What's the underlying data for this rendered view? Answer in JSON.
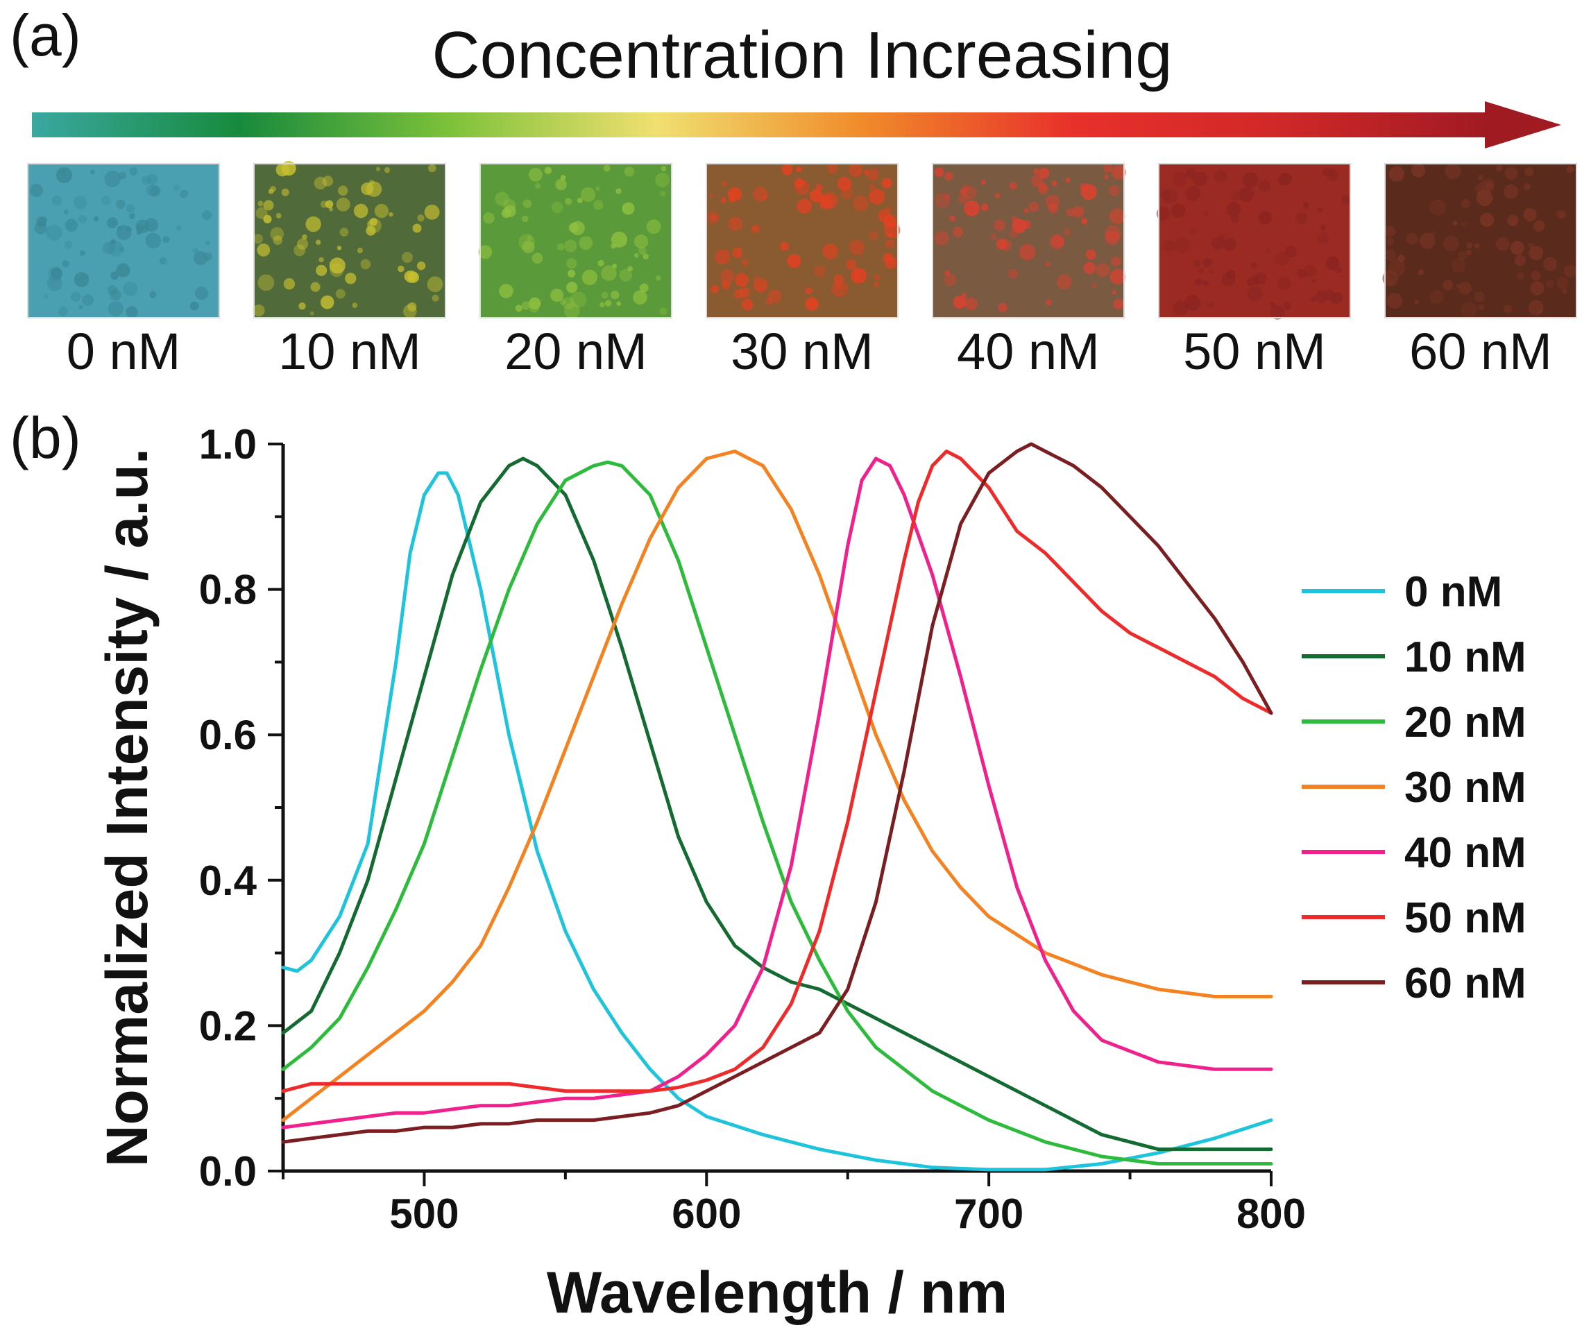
{
  "panel_a": {
    "label": "(a)",
    "banner": "Concentration Increasing",
    "gradient_colors": [
      "#3aa8a0",
      "#178a3c",
      "#7cc13a",
      "#f0e070",
      "#f08a2a",
      "#e8302a",
      "#d02828",
      "#a01a22"
    ],
    "samples": [
      {
        "label": "0 nM",
        "color_base": "#4aa0b0",
        "color_speckle": "#3a8898"
      },
      {
        "label": "10 nM",
        "color_base": "#506a3a",
        "color_speckle": "#c8c030"
      },
      {
        "label": "20 nM",
        "color_base": "#5a9a3a",
        "color_speckle": "#90c040"
      },
      {
        "label": "30 nM",
        "color_base": "#8a5a30",
        "color_speckle": "#e84020"
      },
      {
        "label": "40 nM",
        "color_base": "#7a5a40",
        "color_speckle": "#e04030"
      },
      {
        "label": "50 nM",
        "color_base": "#9a2a22",
        "color_speckle": "#8a2420"
      },
      {
        "label": "60 nM",
        "color_base": "#5a2a1c",
        "color_speckle": "#7a3424"
      }
    ]
  },
  "panel_b": {
    "label": "(b)"
  },
  "chart_data": {
    "type": "line",
    "title": "",
    "xlabel": "Wavelength / nm",
    "ylabel": "Normalized Intensity / a.u.",
    "xlim": [
      450,
      800
    ],
    "ylim": [
      0.0,
      1.0
    ],
    "xticks": [
      500,
      600,
      700,
      800
    ],
    "xtick_labels": [
      "500",
      "600",
      "700",
      "800"
    ],
    "yticks": [
      0.0,
      0.2,
      0.4,
      0.6,
      0.8,
      1.0
    ],
    "ytick_labels": [
      "0.0",
      "0.2",
      "0.4",
      "0.6",
      "0.8",
      "1.0"
    ],
    "legend_position": "right",
    "series": [
      {
        "name": "0 nM",
        "color": "#1ec3dc",
        "x": [
          450,
          455,
          460,
          465,
          470,
          480,
          490,
          495,
          500,
          505,
          508,
          512,
          520,
          530,
          540,
          550,
          560,
          570,
          580,
          590,
          600,
          620,
          640,
          660,
          680,
          700,
          720,
          740,
          760,
          780,
          800
        ],
        "y": [
          0.28,
          0.275,
          0.29,
          0.32,
          0.35,
          0.45,
          0.7,
          0.85,
          0.93,
          0.96,
          0.96,
          0.93,
          0.8,
          0.6,
          0.44,
          0.33,
          0.25,
          0.19,
          0.14,
          0.1,
          0.075,
          0.05,
          0.03,
          0.015,
          0.005,
          0.002,
          0.002,
          0.01,
          0.025,
          0.045,
          0.07
        ]
      },
      {
        "name": "10 nM",
        "color": "#136b32",
        "x": [
          450,
          460,
          470,
          480,
          490,
          500,
          510,
          520,
          530,
          535,
          540,
          550,
          560,
          570,
          580,
          590,
          600,
          610,
          620,
          630,
          640,
          650,
          660,
          670,
          680,
          700,
          720,
          740,
          760,
          780,
          800
        ],
        "y": [
          0.19,
          0.22,
          0.3,
          0.4,
          0.54,
          0.68,
          0.82,
          0.92,
          0.97,
          0.98,
          0.97,
          0.93,
          0.84,
          0.72,
          0.59,
          0.46,
          0.37,
          0.31,
          0.28,
          0.26,
          0.25,
          0.23,
          0.21,
          0.19,
          0.17,
          0.13,
          0.09,
          0.05,
          0.03,
          0.03,
          0.03
        ]
      },
      {
        "name": "20 nM",
        "color": "#2dbb3b",
        "x": [
          450,
          460,
          470,
          480,
          490,
          500,
          510,
          520,
          530,
          540,
          550,
          560,
          565,
          570,
          580,
          590,
          600,
          610,
          620,
          630,
          640,
          650,
          660,
          680,
          700,
          720,
          740,
          760,
          780,
          800
        ],
        "y": [
          0.14,
          0.17,
          0.21,
          0.28,
          0.36,
          0.45,
          0.57,
          0.69,
          0.8,
          0.89,
          0.95,
          0.97,
          0.975,
          0.97,
          0.93,
          0.84,
          0.72,
          0.6,
          0.48,
          0.37,
          0.29,
          0.22,
          0.17,
          0.11,
          0.07,
          0.04,
          0.02,
          0.01,
          0.01,
          0.01
        ]
      },
      {
        "name": "30 nM",
        "color": "#f58220",
        "x": [
          450,
          460,
          470,
          480,
          490,
          500,
          510,
          520,
          530,
          540,
          550,
          560,
          570,
          580,
          590,
          600,
          610,
          620,
          630,
          640,
          650,
          660,
          670,
          680,
          690,
          700,
          720,
          740,
          760,
          780,
          800
        ],
        "y": [
          0.07,
          0.1,
          0.13,
          0.16,
          0.19,
          0.22,
          0.26,
          0.31,
          0.39,
          0.48,
          0.58,
          0.68,
          0.78,
          0.87,
          0.94,
          0.98,
          0.99,
          0.97,
          0.91,
          0.82,
          0.71,
          0.6,
          0.51,
          0.44,
          0.39,
          0.35,
          0.3,
          0.27,
          0.25,
          0.24,
          0.24
        ]
      },
      {
        "name": "40 nM",
        "color": "#f0218c",
        "x": [
          450,
          460,
          470,
          480,
          490,
          500,
          510,
          520,
          530,
          540,
          550,
          560,
          570,
          580,
          590,
          600,
          610,
          620,
          630,
          640,
          650,
          655,
          660,
          665,
          670,
          680,
          690,
          700,
          710,
          720,
          730,
          740,
          760,
          780,
          800
        ],
        "y": [
          0.06,
          0.065,
          0.07,
          0.075,
          0.08,
          0.08,
          0.085,
          0.09,
          0.09,
          0.095,
          0.1,
          0.1,
          0.105,
          0.11,
          0.13,
          0.16,
          0.2,
          0.28,
          0.42,
          0.63,
          0.86,
          0.95,
          0.98,
          0.97,
          0.93,
          0.82,
          0.68,
          0.53,
          0.39,
          0.29,
          0.22,
          0.18,
          0.15,
          0.14,
          0.14
        ]
      },
      {
        "name": "50 nM",
        "color": "#ee2a2a",
        "x": [
          450,
          460,
          470,
          480,
          490,
          500,
          510,
          520,
          530,
          540,
          550,
          560,
          570,
          580,
          590,
          600,
          610,
          620,
          630,
          640,
          650,
          660,
          670,
          675,
          680,
          685,
          690,
          700,
          710,
          720,
          730,
          740,
          750,
          760,
          770,
          780,
          790,
          800
        ],
        "y": [
          0.11,
          0.12,
          0.12,
          0.12,
          0.12,
          0.12,
          0.12,
          0.12,
          0.12,
          0.115,
          0.11,
          0.11,
          0.11,
          0.11,
          0.115,
          0.125,
          0.14,
          0.17,
          0.23,
          0.33,
          0.48,
          0.66,
          0.84,
          0.92,
          0.97,
          0.99,
          0.98,
          0.94,
          0.88,
          0.85,
          0.81,
          0.77,
          0.74,
          0.72,
          0.7,
          0.68,
          0.65,
          0.63
        ]
      },
      {
        "name": "60 nM",
        "color": "#7b1e22",
        "x": [
          450,
          460,
          470,
          480,
          490,
          500,
          510,
          520,
          530,
          540,
          550,
          560,
          570,
          580,
          590,
          600,
          610,
          620,
          630,
          640,
          650,
          660,
          670,
          680,
          690,
          700,
          710,
          715,
          720,
          730,
          740,
          750,
          760,
          770,
          780,
          790,
          800
        ],
        "y": [
          0.04,
          0.045,
          0.05,
          0.055,
          0.055,
          0.06,
          0.06,
          0.065,
          0.065,
          0.07,
          0.07,
          0.07,
          0.075,
          0.08,
          0.09,
          0.11,
          0.13,
          0.15,
          0.17,
          0.19,
          0.25,
          0.37,
          0.55,
          0.75,
          0.89,
          0.96,
          0.99,
          1.0,
          0.99,
          0.97,
          0.94,
          0.9,
          0.86,
          0.81,
          0.76,
          0.7,
          0.63
        ]
      }
    ]
  }
}
